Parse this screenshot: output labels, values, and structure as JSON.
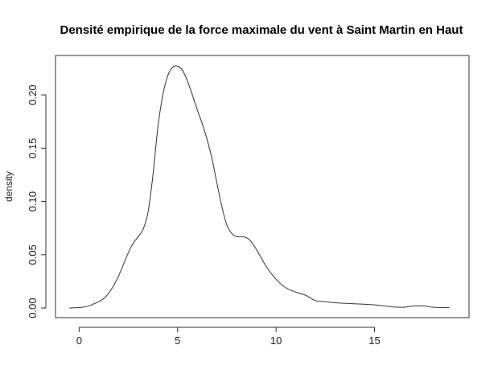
{
  "chart_data": {
    "type": "line",
    "title": "Densité empirique de la force maximale du vent à Saint Martin en Haut",
    "xlabel": "",
    "ylabel": "density",
    "xlim": [
      -1.2,
      19.8
    ],
    "ylim": [
      -0.009,
      0.237
    ],
    "xticks": [
      0,
      5,
      10,
      15
    ],
    "xtick_labels": [
      "0",
      "5",
      "10",
      "15"
    ],
    "yticks": [
      0.0,
      0.05,
      0.1,
      0.15,
      0.2
    ],
    "ytick_labels": [
      "0.00",
      "0.05",
      "0.10",
      "0.15",
      "0.20"
    ],
    "grid": false,
    "series": [
      {
        "x": [
          -0.5,
          0,
          0.25,
          0.5,
          0.75,
          1,
          1.25,
          1.5,
          1.75,
          2,
          2.25,
          2.5,
          2.75,
          3,
          3.25,
          3.5,
          3.75,
          4,
          4.25,
          4.5,
          4.75,
          5,
          5.25,
          5.5,
          5.75,
          6,
          6.25,
          6.5,
          6.75,
          7,
          7.25,
          7.5,
          7.75,
          8,
          8.25,
          8.5,
          8.75,
          9,
          9.25,
          9.5,
          10,
          10.5,
          11,
          11.5,
          12,
          12.5,
          13,
          14,
          15,
          16,
          16.5,
          17,
          17.5,
          18,
          18.8
        ],
        "y": [
          0.0,
          0.0005,
          0.001,
          0.002,
          0.004,
          0.006,
          0.009,
          0.014,
          0.021,
          0.03,
          0.041,
          0.052,
          0.061,
          0.067,
          0.074,
          0.09,
          0.125,
          0.17,
          0.2,
          0.218,
          0.226,
          0.227,
          0.223,
          0.213,
          0.2,
          0.186,
          0.173,
          0.158,
          0.14,
          0.117,
          0.095,
          0.078,
          0.07,
          0.067,
          0.067,
          0.066,
          0.062,
          0.055,
          0.047,
          0.039,
          0.027,
          0.019,
          0.015,
          0.012,
          0.007,
          0.006,
          0.005,
          0.004,
          0.003,
          0.001,
          0.0008,
          0.002,
          0.002,
          0.0007,
          0.0003
        ]
      }
    ]
  }
}
